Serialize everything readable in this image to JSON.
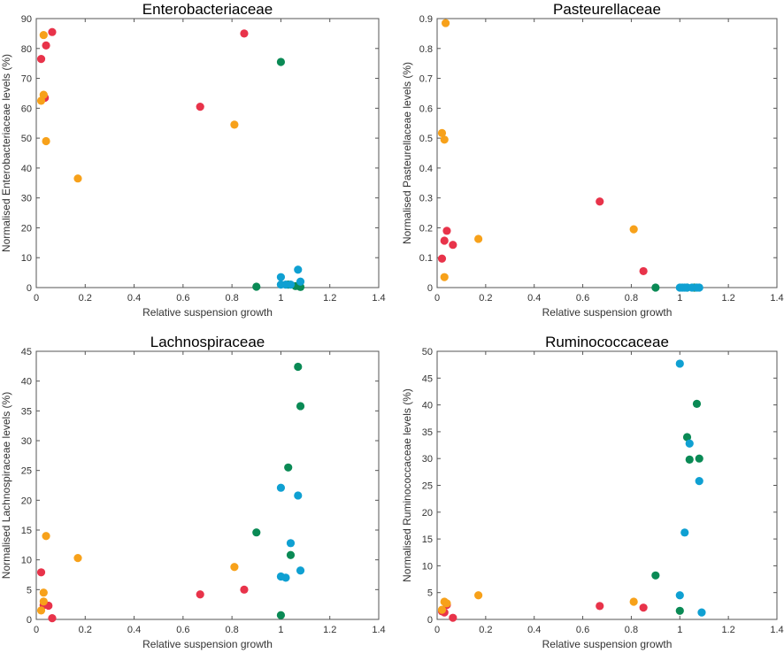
{
  "colors": {
    "red": "#e8334a",
    "orange": "#f7a11a",
    "green": "#0a8a55",
    "blue": "#0fa0d2"
  },
  "chart_data": [
    {
      "type": "scatter",
      "title": "Enterobacteriaceae",
      "xlabel": "Relative suspension growth",
      "ylabel": "Normalised Enterobacteriaceae levels (%)",
      "xlim": [
        0,
        1.4
      ],
      "ylim": [
        0,
        90
      ],
      "xticks": [
        "0",
        "0.2",
        "0.4",
        "0.6",
        "0.8",
        "1",
        "1.2",
        "1.4"
      ],
      "yticks": [
        "0",
        "10",
        "20",
        "30",
        "40",
        "50",
        "60",
        "70",
        "80",
        "90"
      ],
      "series": [
        {
          "color": "red",
          "x": [
            0.02,
            0.04,
            0.065,
            0.035,
            0.67,
            0.85
          ],
          "y": [
            76.5,
            81,
            85.5,
            63.5,
            60.5,
            85
          ]
        },
        {
          "color": "orange",
          "x": [
            0.03,
            0.03,
            0.02,
            0.04,
            0.17,
            0.81
          ],
          "y": [
            84.5,
            64.5,
            62.5,
            49,
            36.5,
            54.5
          ]
        },
        {
          "color": "green",
          "x": [
            1.0,
            0.9,
            1.03,
            1.06,
            1.08
          ],
          "y": [
            75.5,
            0.3,
            1,
            0.5,
            0.2
          ]
        },
        {
          "color": "blue",
          "x": [
            1.0,
            1.0,
            1.02,
            1.04,
            1.07,
            1.08
          ],
          "y": [
            3.5,
            1,
            1,
            1,
            6,
            2
          ]
        }
      ]
    },
    {
      "type": "scatter",
      "title": "Pasteurellaceae",
      "xlabel": "Relative suspension growth",
      "ylabel": "Normalised Pasteurellaceae levels (%)",
      "xlim": [
        0,
        1.4
      ],
      "ylim": [
        0,
        0.9
      ],
      "xticks": [
        "0",
        "0.2",
        "0.4",
        "0.6",
        "0.8",
        "1",
        "1.2",
        "1.4"
      ],
      "yticks": [
        "0",
        "0.1",
        "0.2",
        "0.3",
        "0.4",
        "0.5",
        "0.6",
        "0.7",
        "0.8",
        "0.9"
      ],
      "series": [
        {
          "color": "red",
          "x": [
            0.02,
            0.03,
            0.04,
            0.065,
            0.67,
            0.85
          ],
          "y": [
            0.097,
            0.157,
            0.19,
            0.143,
            0.288,
            0.055
          ]
        },
        {
          "color": "orange",
          "x": [
            0.035,
            0.02,
            0.03,
            0.03,
            0.17,
            0.81
          ],
          "y": [
            0.885,
            0.517,
            0.495,
            0.035,
            0.163,
            0.195
          ]
        },
        {
          "color": "green",
          "x": [
            0.9,
            1.03,
            1.06
          ],
          "y": [
            0,
            0,
            0
          ]
        },
        {
          "color": "blue",
          "x": [
            1.0,
            1.01,
            1.02,
            1.03,
            1.05,
            1.07,
            1.08
          ],
          "y": [
            0,
            0,
            0,
            0,
            0,
            0,
            0
          ]
        }
      ]
    },
    {
      "type": "scatter",
      "title": "Lachnospiraceae",
      "xlabel": "Relative suspension growth",
      "ylabel": "Normalised Lachnospiraceae levels (%)",
      "xlim": [
        0,
        1.4
      ],
      "ylim": [
        0,
        45
      ],
      "xticks": [
        "0",
        "0.2",
        "0.4",
        "0.6",
        "0.8",
        "1",
        "1.2",
        "1.4"
      ],
      "yticks": [
        "0",
        "5",
        "10",
        "15",
        "20",
        "25",
        "30",
        "35",
        "40",
        "45"
      ],
      "series": [
        {
          "color": "red",
          "x": [
            0.02,
            0.03,
            0.05,
            0.065,
            0.67,
            0.85
          ],
          "y": [
            7.9,
            2.4,
            2.3,
            0.2,
            4.2,
            5
          ]
        },
        {
          "color": "orange",
          "x": [
            0.04,
            0.03,
            0.03,
            0.02,
            0.17,
            0.81
          ],
          "y": [
            14,
            4.5,
            3,
            1.5,
            10.3,
            8.8
          ]
        },
        {
          "color": "green",
          "x": [
            1.07,
            1.08,
            1.03,
            0.9,
            1.04,
            1.0
          ],
          "y": [
            42.4,
            35.8,
            25.5,
            14.6,
            10.8,
            0.7
          ]
        },
        {
          "color": "blue",
          "x": [
            1.0,
            1.07,
            1.04,
            1.0,
            1.02,
            1.08
          ],
          "y": [
            22.1,
            20.8,
            12.8,
            7.2,
            7.0,
            8.2
          ]
        }
      ]
    },
    {
      "type": "scatter",
      "title": "Ruminococcaceae",
      "xlabel": "Relative suspension growth",
      "ylabel": "Normalised Ruminococcaceae levels (%)",
      "xlim": [
        0,
        1.4
      ],
      "ylim": [
        0,
        50
      ],
      "xticks": [
        "0",
        "0.2",
        "0.4",
        "0.6",
        "0.8",
        "1",
        "1.2",
        "1.4"
      ],
      "yticks": [
        "0",
        "5",
        "10",
        "15",
        "20",
        "25",
        "30",
        "35",
        "40",
        "45",
        "50"
      ],
      "series": [
        {
          "color": "red",
          "x": [
            0.02,
            0.03,
            0.04,
            0.065,
            0.67,
            0.85
          ],
          "y": [
            1.5,
            1.3,
            2.7,
            0.3,
            2.5,
            2.2
          ]
        },
        {
          "color": "orange",
          "x": [
            0.03,
            0.04,
            0.02,
            0.17,
            0.81
          ],
          "y": [
            3.3,
            3.0,
            1.8,
            4.5,
            3.3
          ]
        },
        {
          "color": "green",
          "x": [
            1.07,
            1.03,
            1.08,
            1.04,
            0.9,
            1.0
          ],
          "y": [
            40.2,
            34.0,
            30.0,
            29.8,
            8.2,
            1.6
          ]
        },
        {
          "color": "blue",
          "x": [
            1.0,
            1.04,
            1.08,
            1.02,
            1.0,
            1.09
          ],
          "y": [
            47.7,
            32.8,
            25.8,
            16.2,
            4.5,
            1.3
          ]
        }
      ]
    }
  ]
}
